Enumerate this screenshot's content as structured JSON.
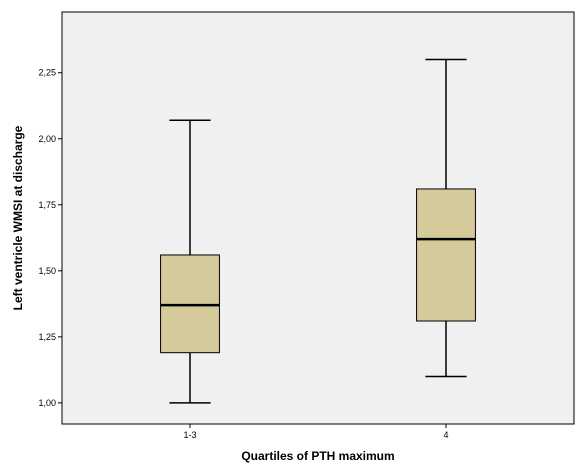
{
  "chart_data": {
    "type": "box",
    "xlabel": "Quartiles of PTH maximum",
    "ylabel": "Left ventricle WMSI at discharge",
    "ylim": [
      0.92,
      2.48
    ],
    "yticks": [
      {
        "value": 1.0,
        "label": "1,00"
      },
      {
        "value": 1.25,
        "label": "1,25"
      },
      {
        "value": 1.5,
        "label": "1,50"
      },
      {
        "value": 1.75,
        "label": "1,75"
      },
      {
        "value": 2.0,
        "label": "2,00"
      },
      {
        "value": 2.25,
        "label": "2,25"
      }
    ],
    "categories": [
      "1-3",
      "4"
    ],
    "boxes": [
      {
        "category": "1-3",
        "min": 1.0,
        "q1": 1.19,
        "median": 1.37,
        "q3": 1.56,
        "max": 2.07
      },
      {
        "category": "4",
        "min": 1.1,
        "q1": 1.31,
        "median": 1.62,
        "q3": 1.81,
        "max": 2.3
      }
    ],
    "grid": false,
    "colors": {
      "plot_background": "#f0f0f0",
      "box_fill": "#d4ca9a",
      "line": "#000000"
    }
  }
}
